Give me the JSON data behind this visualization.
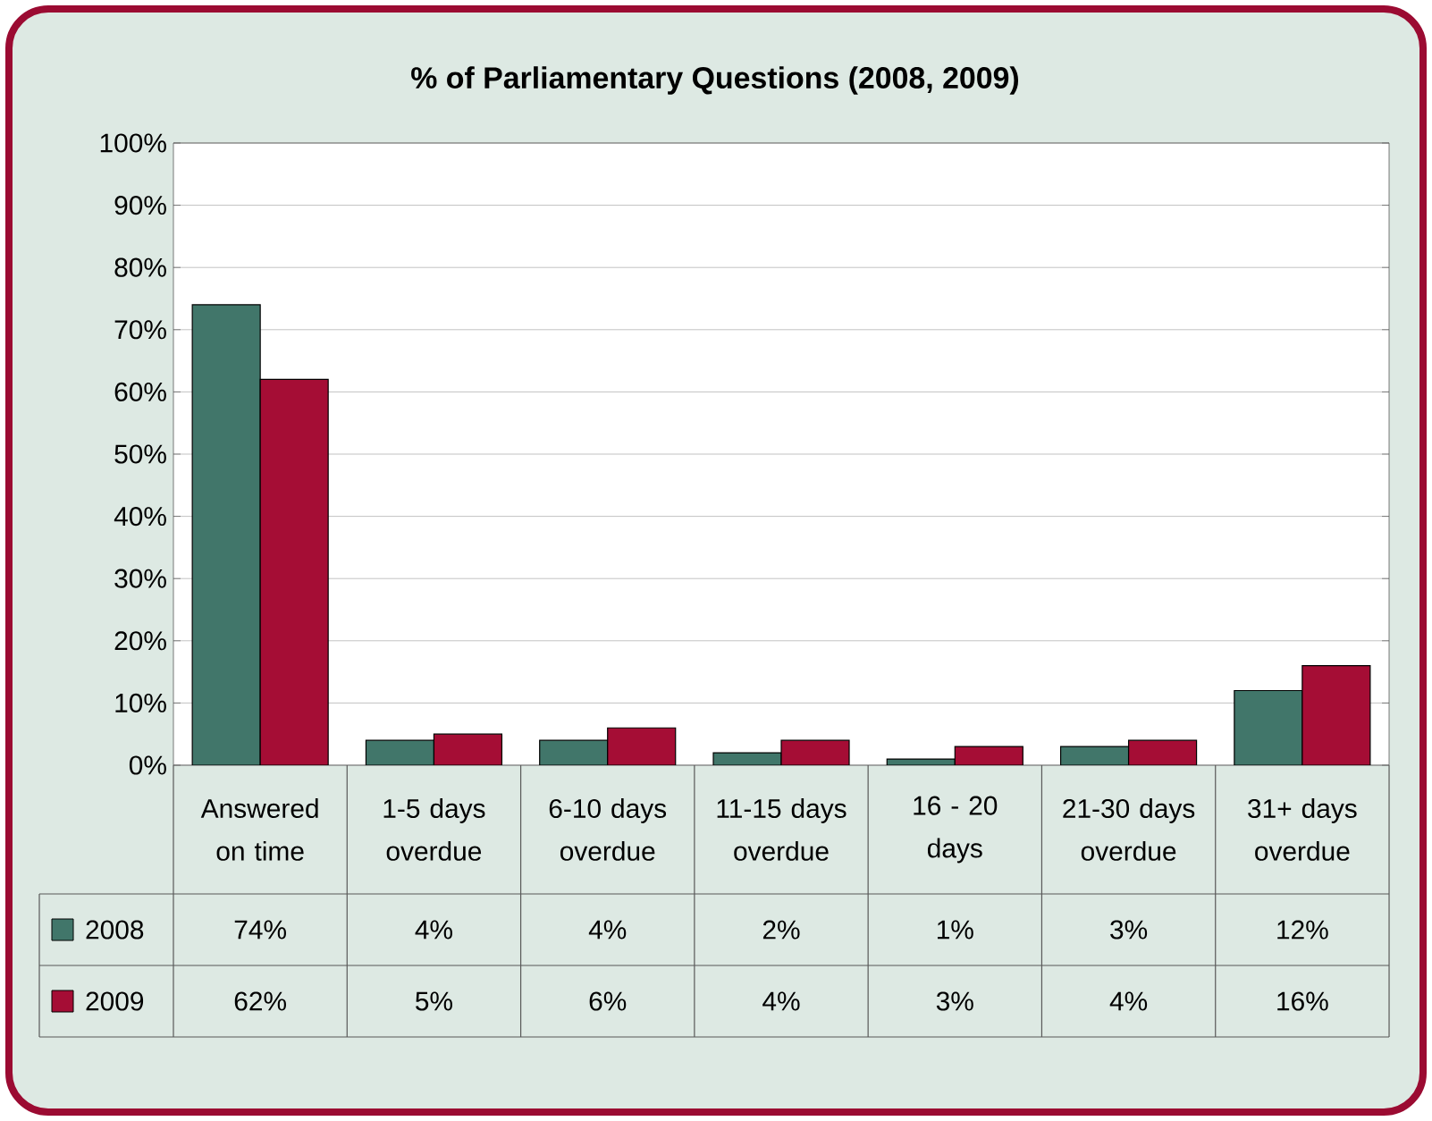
{
  "chart_data": {
    "type": "bar",
    "title": "% of Parliamentary Questions (2008, 2009)",
    "categories": [
      "Answered on time",
      "1-5 days overdue",
      "6-10 days overdue",
      "11-15 days overdue",
      "16 - 20 days",
      "21-30 days overdue",
      "31+ days overdue"
    ],
    "series": [
      {
        "name": "2008",
        "color": "#41766a",
        "values": [
          74,
          4,
          4,
          2,
          1,
          3,
          12
        ],
        "value_labels": [
          "74%",
          "4%",
          "4%",
          "2%",
          "1%",
          "3%",
          "12%"
        ]
      },
      {
        "name": "2009",
        "color": "#a50d35",
        "values": [
          62,
          5,
          6,
          4,
          3,
          4,
          16
        ],
        "value_labels": [
          "62%",
          "5%",
          "6%",
          "4%",
          "3%",
          "4%",
          "16%"
        ]
      }
    ],
    "ylim": [
      0,
      100
    ],
    "yticks": [
      {
        "value": 0,
        "label": "0%"
      },
      {
        "value": 10,
        "label": "10%"
      },
      {
        "value": 20,
        "label": "20%"
      },
      {
        "value": 30,
        "label": "30%"
      },
      {
        "value": 40,
        "label": "40%"
      },
      {
        "value": 50,
        "label": "50%"
      },
      {
        "value": 60,
        "label": "60%"
      },
      {
        "value": 70,
        "label": "70%"
      },
      {
        "value": 80,
        "label": "80%"
      },
      {
        "value": 90,
        "label": "90%"
      },
      {
        "value": 100,
        "label": "100%"
      }
    ],
    "grid": "y",
    "legend": "bottom left"
  }
}
